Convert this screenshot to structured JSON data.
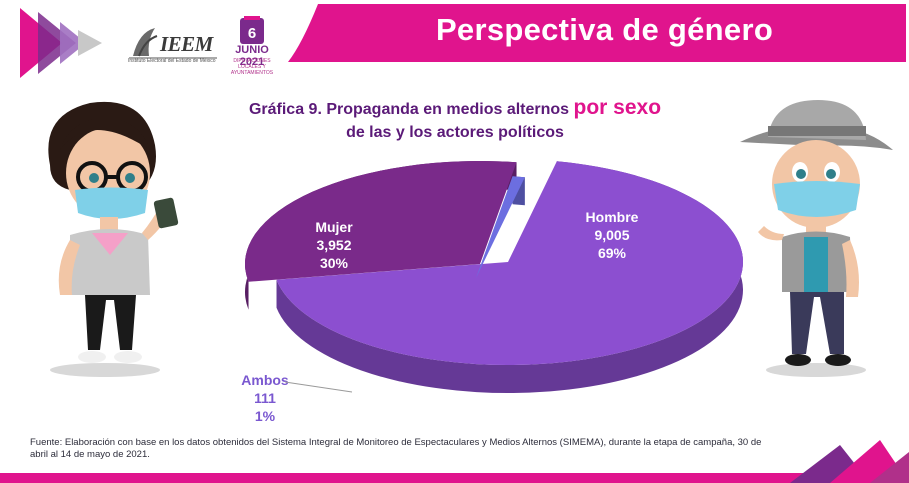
{
  "header": {
    "title": "Perspectiva de género",
    "brand_color": "#e0148d",
    "accent_color": "#6a2c91"
  },
  "logos": {
    "ieem": "IEEM",
    "ieem_subtitle": "Instituto Electoral del Estado de México",
    "election_number": "6",
    "election_year": "JUNIO 2021",
    "election_subtitle": "DIPUTACIONES LOCALES Y AYUNTAMIENTOS"
  },
  "chart_data": {
    "type": "pie",
    "title_part1": "Gráfica 9. Propaganda en medios alternos ",
    "title_highlight": "por sexo",
    "title_part2": "de las y los actores políticos",
    "slices": [
      {
        "label": "Hombre",
        "value": 9005,
        "value_text": "9,005",
        "percent_text": "69%",
        "color": "#8c4fd0"
      },
      {
        "label": "Mujer",
        "value": 3952,
        "value_text": "3,952",
        "percent_text": "30%",
        "color": "#7a2a8a"
      },
      {
        "label": "Ambos",
        "value": 111,
        "value_text": "111",
        "percent_text": "1%",
        "color": "#6c6ee0"
      }
    ]
  },
  "footer": {
    "source": "Fuente: Elaboración con base en los datos obtenidos del Sistema Integral de Monitoreo de Espectaculares y Medios Alternos (SIMEMA), durante la etapa de campaña, 30 de abril al 14 de mayo de 2021."
  }
}
